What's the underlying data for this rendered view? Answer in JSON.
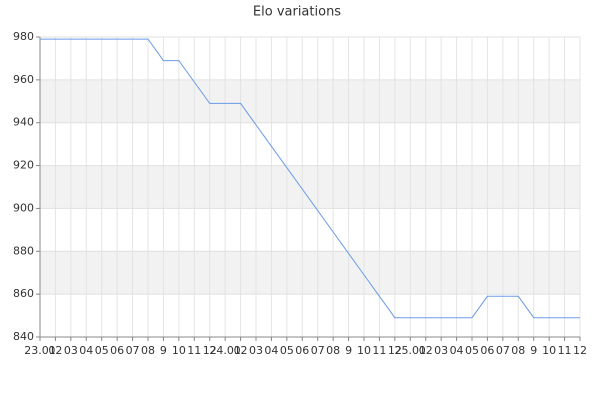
{
  "chart_data": {
    "type": "line",
    "title": "Elo variations",
    "categories": [
      "23.01",
      "02",
      "03",
      "04",
      "05",
      "06",
      "07",
      "08",
      "9",
      "10",
      "11",
      "12",
      "24.01",
      "02",
      "03",
      "04",
      "05",
      "06",
      "07",
      "08",
      "9",
      "10",
      "11",
      "12",
      "25.01",
      "02",
      "03",
      "04",
      "05",
      "06",
      "07",
      "08",
      "9",
      "10",
      "11",
      "12"
    ],
    "series": [
      {
        "color": "#6a9be8",
        "values": [
          979,
          979,
          979,
          979,
          979,
          979,
          979,
          979,
          969,
          969,
          959,
          949,
          949,
          949,
          939,
          929,
          919,
          909,
          899,
          889,
          879,
          869,
          859,
          849,
          849,
          849,
          849,
          849,
          849,
          859,
          859,
          859,
          849,
          849,
          849,
          849
        ]
      }
    ],
    "ylim": [
      840,
      980
    ],
    "yticks": [
      840,
      860,
      880,
      900,
      920,
      940,
      960,
      980
    ],
    "grid": true,
    "alternate_bands": true
  }
}
